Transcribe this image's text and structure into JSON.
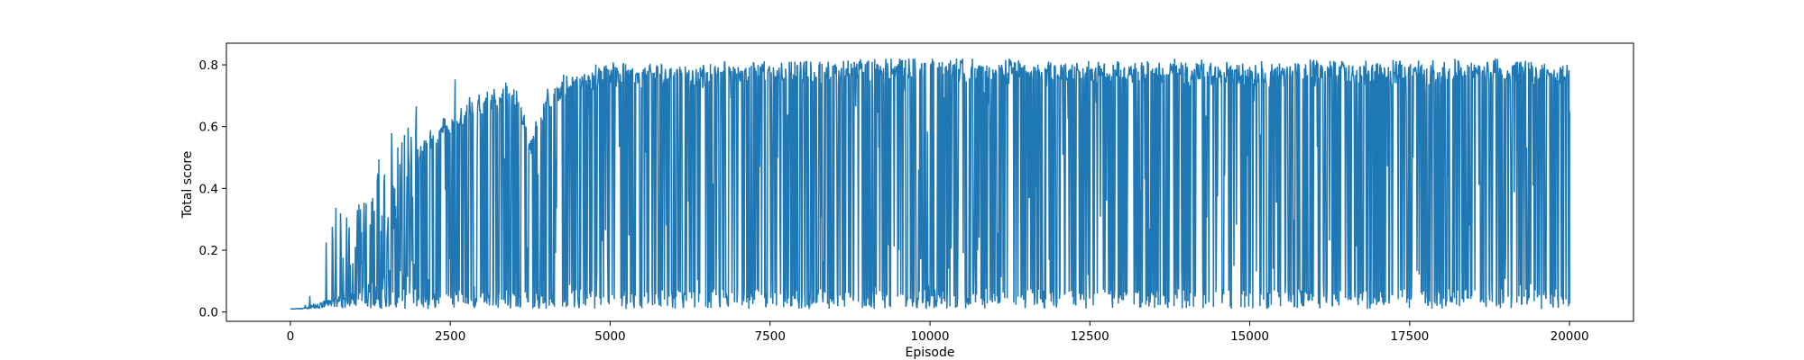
{
  "chart_data": {
    "type": "line",
    "title": "",
    "xlabel": "Episode",
    "ylabel": "Total score",
    "xlim": [
      -1000,
      21000
    ],
    "ylim": [
      -0.03,
      0.87
    ],
    "x_ticks": [
      0,
      2500,
      5000,
      7500,
      10000,
      12500,
      15000,
      17500,
      20000
    ],
    "y_ticks": [
      0.0,
      0.2,
      0.4,
      0.6,
      0.8
    ],
    "x_tick_labels": [
      "0",
      "2500",
      "5000",
      "7500",
      "10000",
      "12500",
      "15000",
      "17500",
      "20000"
    ],
    "y_tick_labels": [
      "0.0",
      "0.2",
      "0.4",
      "0.6",
      "0.8"
    ],
    "grid": false,
    "legend": "none",
    "series": [
      {
        "color": "#1f77b4",
        "x": [
          0,
          250,
          500,
          750,
          1000,
          1250,
          1500,
          1750,
          2000,
          2250,
          2500,
          2750,
          3000,
          3250,
          3500,
          3750,
          4000,
          4250,
          4500,
          4750,
          5000,
          5500,
          6000,
          6500,
          7000,
          7500,
          8000,
          8500,
          9000,
          9500,
          10000,
          11000,
          12000,
          13000,
          14000,
          15000,
          16000,
          17000,
          18000,
          19000,
          20000
        ],
        "y_max": [
          0.02,
          0.04,
          0.24,
          0.38,
          0.33,
          0.41,
          0.58,
          0.64,
          0.69,
          0.74,
          0.76,
          0.77,
          0.77,
          0.79,
          0.78,
          0.67,
          0.74,
          0.77,
          0.79,
          0.8,
          0.81,
          0.8,
          0.8,
          0.8,
          0.82,
          0.81,
          0.81,
          0.81,
          0.82,
          0.82,
          0.82,
          0.82,
          0.82,
          0.82,
          0.82,
          0.81,
          0.82,
          0.82,
          0.82,
          0.82,
          0.81
        ],
        "y_min": [
          0.01,
          0.01,
          0.01,
          0.01,
          0.01,
          0.01,
          0.01,
          0.01,
          0.01,
          0.01,
          0.01,
          0.01,
          0.01,
          0.01,
          0.01,
          0.01,
          0.01,
          0.01,
          0.01,
          0.01,
          0.01,
          0.01,
          0.01,
          0.01,
          0.01,
          0.01,
          0.01,
          0.01,
          0.01,
          0.01,
          0.01,
          0.01,
          0.01,
          0.01,
          0.01,
          0.01,
          0.01,
          0.01,
          0.01,
          0.01,
          0.01
        ],
        "y_typical": [
          0.01,
          0.02,
          0.08,
          0.14,
          0.18,
          0.25,
          0.35,
          0.45,
          0.52,
          0.58,
          0.62,
          0.65,
          0.68,
          0.7,
          0.72,
          0.55,
          0.7,
          0.74,
          0.76,
          0.77,
          0.78,
          0.78,
          0.78,
          0.78,
          0.79,
          0.79,
          0.79,
          0.79,
          0.8,
          0.8,
          0.8,
          0.79,
          0.79,
          0.79,
          0.79,
          0.78,
          0.79,
          0.79,
          0.79,
          0.79,
          0.78
        ],
        "y_last": 0.65
      }
    ]
  }
}
